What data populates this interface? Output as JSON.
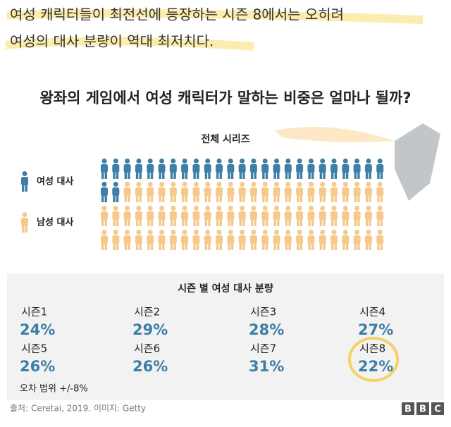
{
  "header": {
    "lines": [
      "여성 캐릭터들이 최전선에 등장하는 시즌 8에서는 오히려",
      "여성의 대사 분량이 역대 최저치다."
    ]
  },
  "title": "왕좌의 게임에서 여성 캐릭터가 말하는 비중은 얼마나 될까?",
  "pictogram": {
    "title": "전체 시리즈",
    "groups": [
      {
        "label": "여성 대사",
        "color": "#3d7fa6",
        "count": 27
      },
      {
        "label": "남성 대사",
        "color": "#f6c98a",
        "count": 73
      }
    ]
  },
  "seasons": {
    "title": "시즌 별 여성 대사 분량",
    "items": [
      {
        "label": "시즌1",
        "value": "24%"
      },
      {
        "label": "시즌2",
        "value": "29%"
      },
      {
        "label": "시즌3",
        "value": "28%"
      },
      {
        "label": "시즌4",
        "value": "27%"
      },
      {
        "label": "시즌5",
        "value": "26%"
      },
      {
        "label": "시즌6",
        "value": "26%"
      },
      {
        "label": "시즌7",
        "value": "31%"
      },
      {
        "label": "시즌8",
        "value": "22%"
      }
    ],
    "note": "오차 범위 +/-8%"
  },
  "footer": {
    "source": "출처: Ceretai, 2019. 이미지: Getty",
    "logo": [
      "B",
      "B",
      "C"
    ]
  }
}
